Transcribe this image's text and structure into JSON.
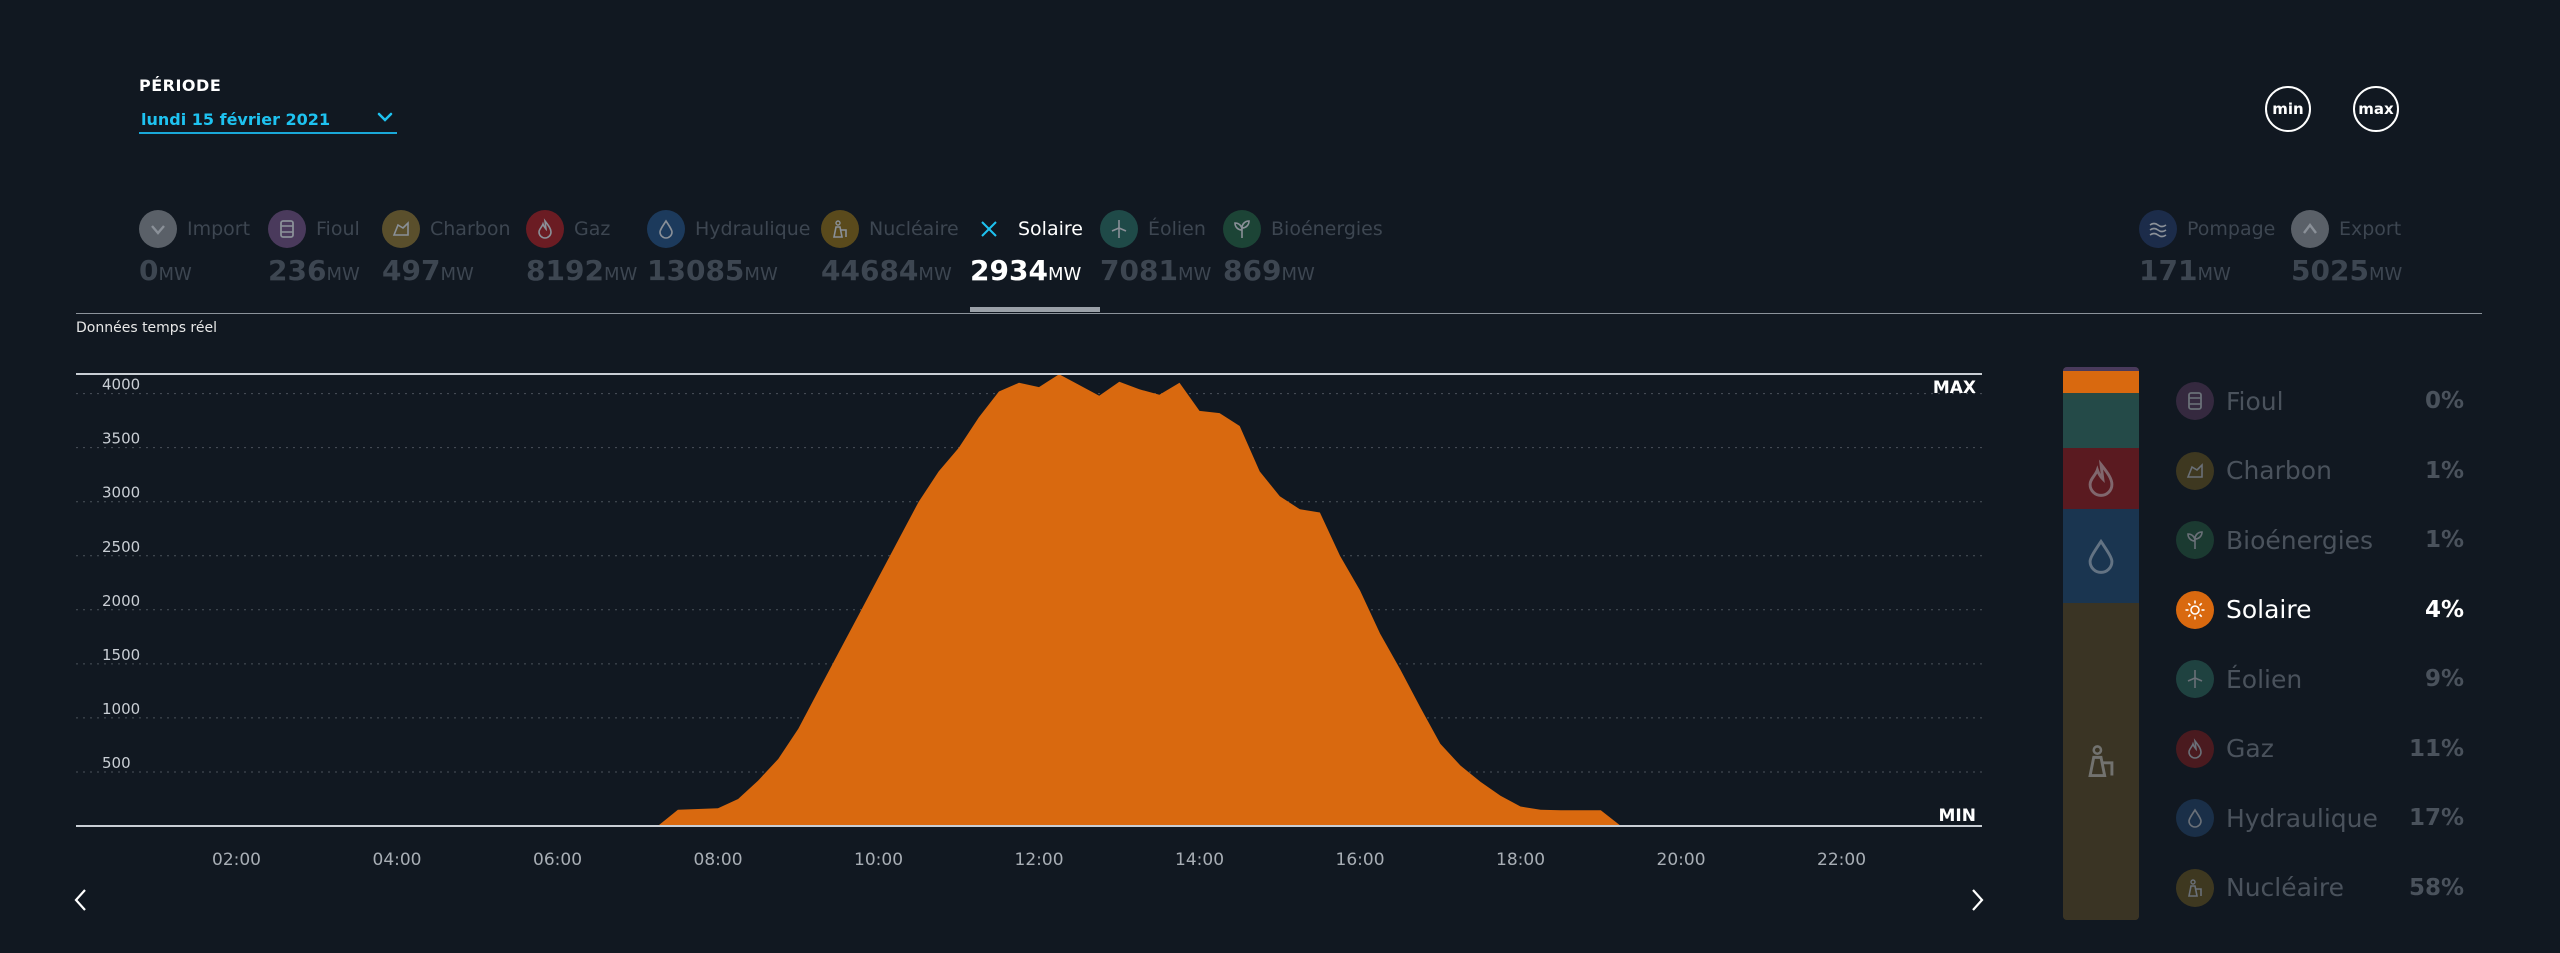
{
  "period": {
    "label": "PÉRIODE",
    "value": "lundi 15 février 2021"
  },
  "buttons": {
    "min": "min",
    "max": "max"
  },
  "colors": {
    "background": "#111821",
    "accent": "#1ec2f0",
    "solar": "#d9690f",
    "inactive_text": "#3d4651"
  },
  "tabs": [
    {
      "key": "import",
      "name": "Import",
      "value": "0",
      "unit": "MW",
      "icon": "chevron-down-icon",
      "color": "#5a6068"
    },
    {
      "key": "fioul",
      "name": "Fioul",
      "value": "236",
      "unit": "MW",
      "icon": "barrel-icon",
      "color": "#4a3a5c"
    },
    {
      "key": "charbon",
      "name": "Charbon",
      "value": "497",
      "unit": "MW",
      "icon": "coal-icon",
      "color": "#5a4f2c"
    },
    {
      "key": "gaz",
      "name": "Gaz",
      "value": "8192",
      "unit": "MW",
      "icon": "flame-icon",
      "color": "#6b1c23"
    },
    {
      "key": "hydraulique",
      "name": "Hydraulique",
      "value": "13085",
      "unit": "MW",
      "icon": "water-drop-icon",
      "color": "#1c3a5c"
    },
    {
      "key": "nucleaire",
      "name": "Nucléaire",
      "value": "44684",
      "unit": "MW",
      "icon": "nuclear-plant-icon",
      "color": "#5a4a1c"
    },
    {
      "key": "solaire",
      "name": "Solaire",
      "value": "2934",
      "unit": "MW",
      "icon": "close-icon",
      "color": "#1ec2f0",
      "active": true
    },
    {
      "key": "eolien",
      "name": "Éolien",
      "value": "7081",
      "unit": "MW",
      "icon": "wind-turbine-icon",
      "color": "#1f4a48"
    },
    {
      "key": "bioenergies",
      "name": "Bioénergies",
      "value": "869",
      "unit": "MW",
      "icon": "sprout-icon",
      "color": "#1c4436"
    },
    {
      "key": "pompage",
      "name": "Pompage",
      "value": "171",
      "unit": "MW",
      "icon": "waves-icon",
      "color": "#1c2c4a"
    },
    {
      "key": "export",
      "name": "Export",
      "value": "5025",
      "unit": "MW",
      "icon": "chevron-up-icon",
      "color": "#5a6068"
    }
  ],
  "realtime_label": "Données temps réel",
  "chart_data": {
    "type": "area",
    "series": [
      {
        "name": "Solaire",
        "color": "#d9690f"
      }
    ],
    "x": [
      "07:15",
      "07:30",
      "08:00",
      "08:15",
      "08:30",
      "08:45",
      "09:00",
      "09:15",
      "09:30",
      "09:45",
      "10:00",
      "10:15",
      "10:30",
      "10:45",
      "11:00",
      "11:15",
      "11:30",
      "11:45",
      "12:00",
      "12:15",
      "12:30",
      "12:45",
      "13:00",
      "13:15",
      "13:30",
      "13:45",
      "14:00",
      "14:15",
      "14:30",
      "14:45",
      "15:00",
      "15:15",
      "15:30",
      "15:45",
      "16:00",
      "16:15",
      "16:30",
      "16:45",
      "17:00",
      "17:15",
      "17:30",
      "17:45",
      "18:00",
      "18:15",
      "18:30",
      "18:45",
      "19:00",
      "19:15"
    ],
    "y": [
      0,
      150,
      165,
      250,
      420,
      620,
      900,
      1250,
      1600,
      1950,
      2300,
      2650,
      3000,
      3280,
      3500,
      3780,
      4020,
      4100,
      4060,
      4180,
      4080,
      3980,
      4110,
      4040,
      3990,
      4100,
      3840,
      3820,
      3700,
      3280,
      3050,
      2930,
      2900,
      2500,
      2180,
      1780,
      1450,
      1100,
      760,
      560,
      410,
      280,
      180,
      150,
      145,
      145,
      145,
      0
    ],
    "xlim": [
      "00:00",
      "23:45"
    ],
    "ylim": [
      0,
      4200
    ],
    "yticks": [
      "500",
      "1000",
      "1500",
      "2000",
      "2500",
      "3000",
      "3500",
      "4000"
    ],
    "xticks": [
      "02:00",
      "04:00",
      "06:00",
      "08:00",
      "10:00",
      "12:00",
      "14:00",
      "16:00",
      "18:00",
      "20:00",
      "22:00"
    ],
    "max_label": "MAX",
    "min_label": "MIN",
    "grid": true
  },
  "mix": [
    {
      "key": "fioul",
      "name": "Fioul",
      "pct": "0%",
      "share": 0.3,
      "icon": "barrel-icon",
      "color": "#35293f",
      "seg": "#4a3a5c"
    },
    {
      "key": "charbon",
      "name": "Charbon",
      "pct": "1%",
      "share": 1,
      "icon": "coal-icon",
      "color": "#3e3820",
      "seg": "#3e3a26"
    },
    {
      "key": "bioenergies",
      "name": "Bioénergies",
      "pct": "1%",
      "share": 1,
      "icon": "sprout-icon",
      "color": "#1b3a31",
      "seg": "#274a44"
    },
    {
      "key": "solaire",
      "name": "Solaire",
      "pct": "4%",
      "share": 4,
      "icon": "sun-icon",
      "color": "#d9690f",
      "seg": "#d9690f",
      "active": true
    },
    {
      "key": "eolien",
      "name": "Éolien",
      "pct": "9%",
      "share": 9,
      "icon": "wind-turbine-icon",
      "color": "#1f4240",
      "seg": "#244a48"
    },
    {
      "key": "gaz",
      "name": "Gaz",
      "pct": "11%",
      "share": 11,
      "icon": "flame-icon",
      "color": "#4a1a1f",
      "seg": "#5a1a20"
    },
    {
      "key": "hydraulique",
      "name": "Hydraulique",
      "pct": "17%",
      "share": 17,
      "icon": "water-drop-icon",
      "color": "#1a2f48",
      "seg": "#1a3550"
    },
    {
      "key": "nucleaire",
      "name": "Nucléaire",
      "pct": "58%",
      "share": 58,
      "icon": "nuclear-plant-icon",
      "color": "#3e3820",
      "seg": "#3a3424"
    }
  ]
}
